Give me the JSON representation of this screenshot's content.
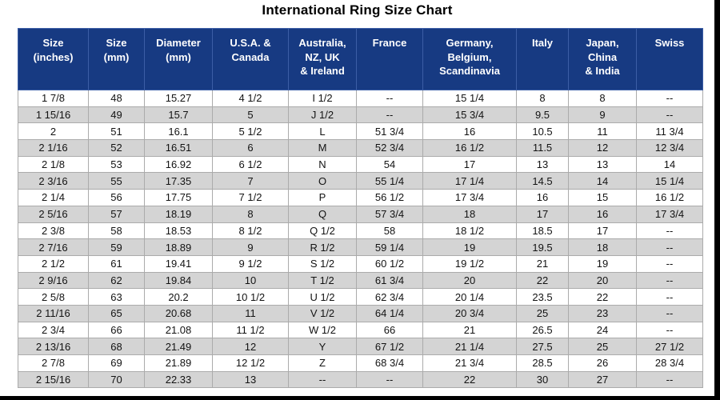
{
  "title": "International Ring Size Chart",
  "colors": {
    "header_bg": "#173a82",
    "header_text": "#ffffff",
    "row_bg": "#ffffff",
    "row_alt_bg": "#d4d4d4",
    "body_text": "#131313",
    "frame": "#000000"
  },
  "chart_data": {
    "type": "table",
    "title": "International Ring Size Chart",
    "columns": [
      "Size\n(inches)",
      "Size\n(mm)",
      "Diameter\n(mm)",
      "U.S.A. &\nCanada",
      "Australia,\nNZ, UK\n& Ireland",
      "France",
      "Germany,\nBelgium,\nScandinavia",
      "Italy",
      "Japan,\nChina\n& India",
      "Swiss"
    ],
    "rows": [
      [
        "1  7/8",
        "48",
        "15.27",
        "4 1/2",
        "I 1/2",
        "--",
        "15 1/4",
        "8",
        "8",
        "--"
      ],
      [
        "1 15/16",
        "49",
        "15.7",
        "5",
        "J 1/2",
        "--",
        "15 3/4",
        "9.5",
        "9",
        "--"
      ],
      [
        "2",
        "51",
        "16.1",
        "5 1/2",
        "L",
        "51 3/4",
        "16",
        "10.5",
        "11",
        "11 3/4"
      ],
      [
        "2  1/16",
        "52",
        "16.51",
        "6",
        "M",
        "52 3/4",
        "16 1/2",
        "11.5",
        "12",
        "12 3/4"
      ],
      [
        "2  1/8",
        "53",
        "16.92",
        "6 1/2",
        "N",
        "54",
        "17",
        "13",
        "13",
        "14"
      ],
      [
        "2  3/16",
        "55",
        "17.35",
        "7",
        "O",
        "55 1/4",
        "17 1/4",
        "14.5",
        "14",
        "15 1/4"
      ],
      [
        "2  1/4",
        "56",
        "17.75",
        "7 1/2",
        "P",
        "56 1/2",
        "17 3/4",
        "16",
        "15",
        "16 1/2"
      ],
      [
        "2  5/16",
        "57",
        "18.19",
        "8",
        "Q",
        "57 3/4",
        "18",
        "17",
        "16",
        "17 3/4"
      ],
      [
        "2  3/8",
        "58",
        "18.53",
        "8 1/2",
        "Q 1/2",
        "58",
        "18 1/2",
        "18.5",
        "17",
        "--"
      ],
      [
        "2  7/16",
        "59",
        "18.89",
        "9",
        "R 1/2",
        "59 1/4",
        "19",
        "19.5",
        "18",
        "--"
      ],
      [
        "2  1/2",
        "61",
        "19.41",
        "9 1/2",
        "S 1/2",
        "60 1/2",
        "19 1/2",
        "21",
        "19",
        "--"
      ],
      [
        "2  9/16",
        "62",
        "19.84",
        "10",
        "T 1/2",
        "61 3/4",
        "20",
        "22",
        "20",
        "--"
      ],
      [
        "2  5/8",
        "63",
        "20.2",
        "10 1/2",
        "U 1/2",
        "62 3/4",
        "20 1/4",
        "23.5",
        "22",
        "--"
      ],
      [
        "2 11/16",
        "65",
        "20.68",
        "11",
        "V 1/2",
        "64 1/4",
        "20 3/4",
        "25",
        "23",
        "--"
      ],
      [
        "2  3/4",
        "66",
        "21.08",
        "11 1/2",
        "W 1/2",
        "66",
        "21",
        "26.5",
        "24",
        "--"
      ],
      [
        "2 13/16",
        "68",
        "21.49",
        "12",
        "Y",
        "67 1/2",
        "21 1/4",
        "27.5",
        "25",
        "27 1/2"
      ],
      [
        "2  7/8",
        "69",
        "21.89",
        "12 1/2",
        "Z",
        "68 3/4",
        "21 3/4",
        "28.5",
        "26",
        "28 3/4"
      ],
      [
        "2 15/16",
        "70",
        "22.33",
        "13",
        "--",
        "--",
        "22",
        "30",
        "27",
        "--"
      ]
    ]
  }
}
